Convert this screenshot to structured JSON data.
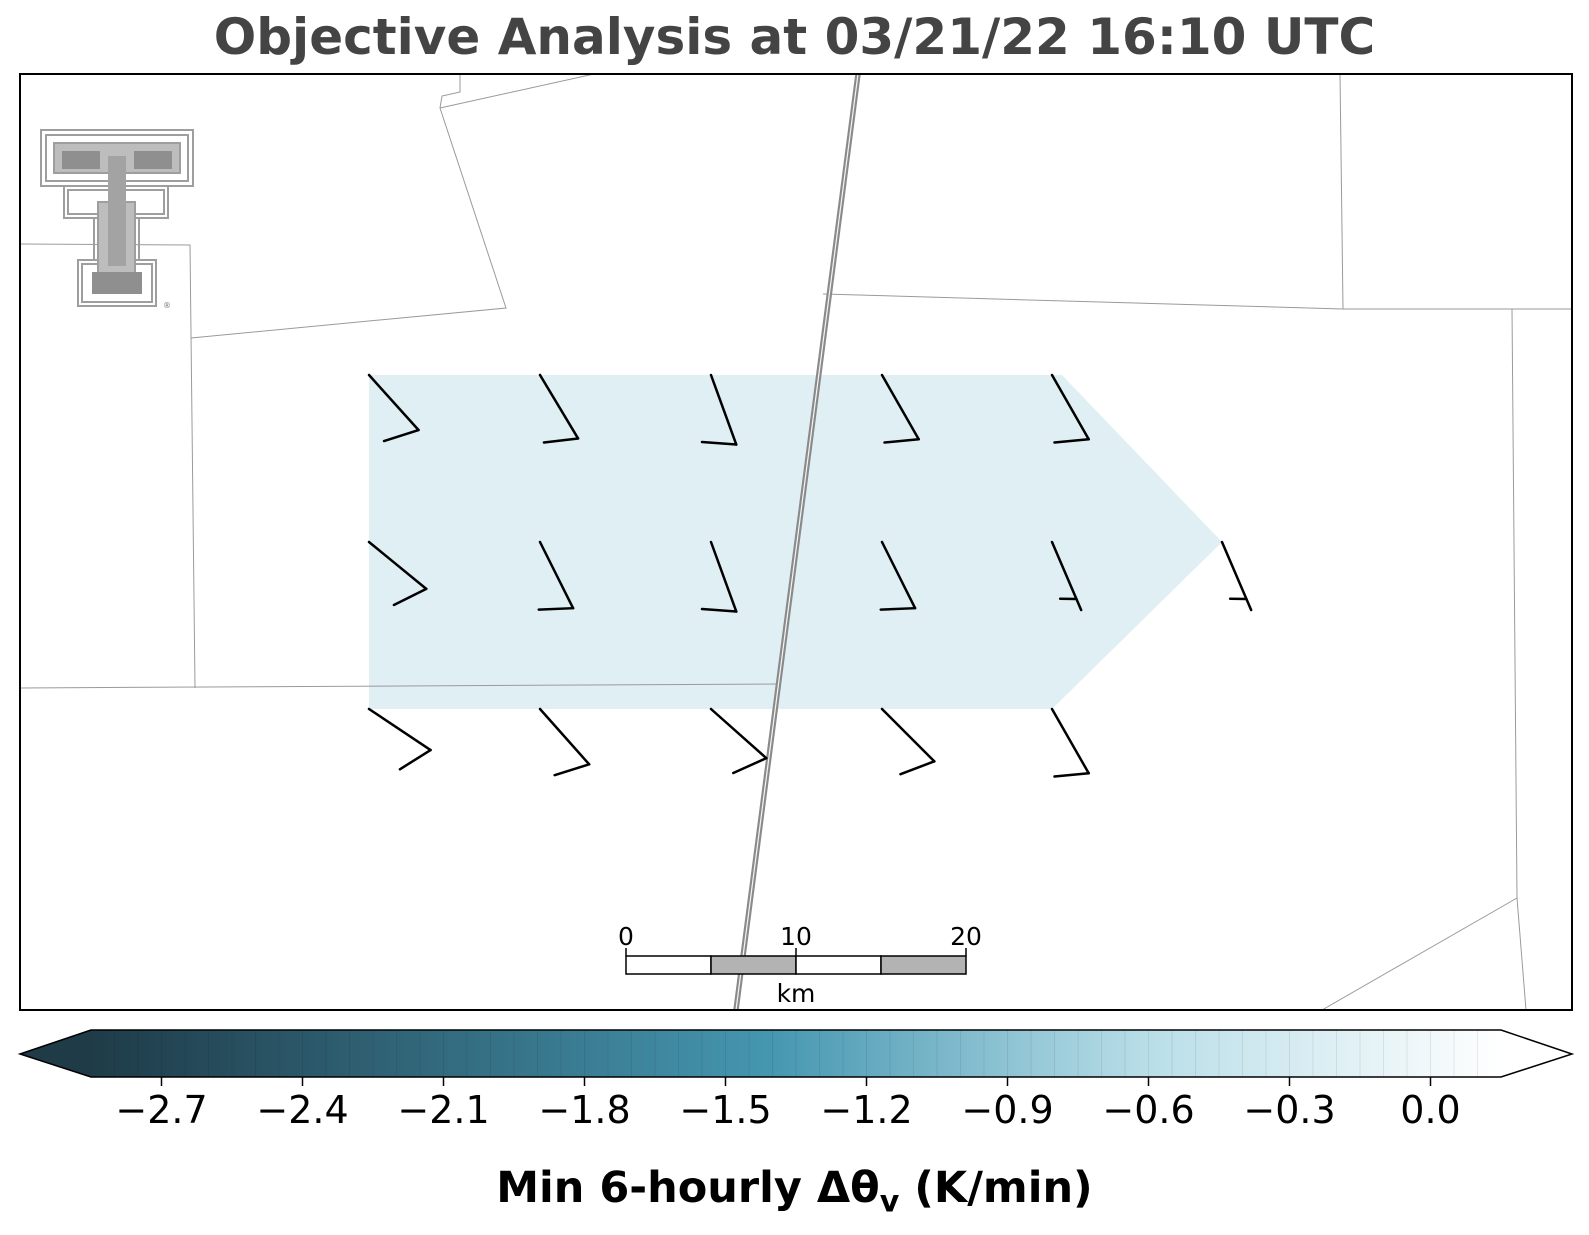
{
  "title": "Objective Analysis at 03/21/22 16:10 UTC",
  "logo": {
    "icon": "texas-tech-double-t-logo",
    "mark": "®",
    "color": "#9e9e9e"
  },
  "scale_bar": {
    "ticks": [
      "0",
      "10",
      "20"
    ],
    "unit": "km"
  },
  "colorbar": {
    "label_main": "Min 6-hourly Δθ",
    "label_sub": "v",
    "label_units": " (K/min)",
    "range": [
      -2.85,
      0.15
    ],
    "extend": "both",
    "tick_values": [
      -2.7,
      -2.4,
      -2.1,
      -1.8,
      -1.5,
      -1.2,
      -0.9,
      -0.6,
      -0.3,
      0.0
    ],
    "tick_labels": [
      "−2.7",
      "−2.4",
      "−2.1",
      "−1.8",
      "−1.5",
      "−1.2",
      "−0.9",
      "−0.6",
      "−0.3",
      "0.0"
    ],
    "colors": {
      "min": "#1f3b48",
      "mid": "#4596b0",
      "light": "#b9dee8",
      "max": "#ffffff"
    }
  },
  "analysis_field": {
    "color": "#dbedf3",
    "approx_value": -0.2
  },
  "wind_barbs": {
    "color": "#000000",
    "rows": [
      {
        "label": "north",
        "barbs": [
          {
            "u": 9,
            "v": 10
          },
          {
            "u": 6,
            "v": 10
          },
          {
            "u": 4,
            "v": 11
          },
          {
            "u": 4,
            "v": 7
          },
          {
            "u": 4,
            "v": 7
          }
        ]
      },
      {
        "label": "middle",
        "barbs": [
          {
            "u": 11,
            "v": 9
          },
          {
            "u": 5,
            "v": 10
          },
          {
            "u": 4,
            "v": 11
          },
          {
            "u": 5,
            "v": 10
          },
          {
            "u": 3,
            "v": 7
          },
          {
            "u": 3,
            "v": 7
          }
        ]
      },
      {
        "label": "south",
        "barbs": [
          {
            "u": 12,
            "v": 8
          },
          {
            "u": 8,
            "v": 9
          },
          {
            "u": 9,
            "v": 8
          },
          {
            "u": 9,
            "v": 9
          },
          {
            "u": 4,
            "v": 7
          }
        ]
      }
    ]
  }
}
